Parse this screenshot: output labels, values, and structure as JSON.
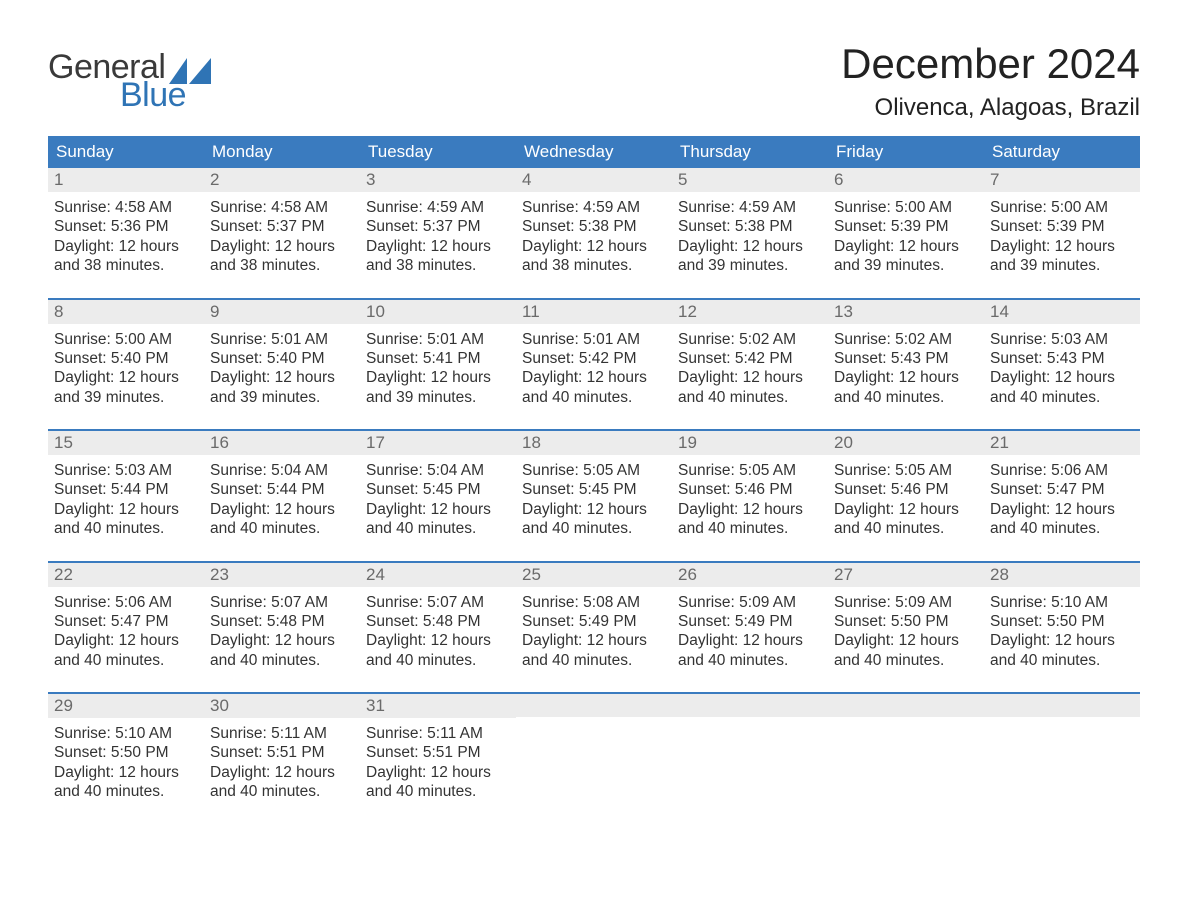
{
  "colors": {
    "brand_blue": "#2f74b5",
    "header_blue": "#3a7bbf",
    "row_separator": "#3a7bbf",
    "daynum_bg": "#ececec",
    "text_dark": "#333333",
    "text_daynum": "#6a6a6a",
    "page_bg": "#ffffff",
    "white": "#ffffff"
  },
  "typography": {
    "title_fontsize_pt": 32,
    "location_fontsize_pt": 18,
    "header_fontsize_pt": 13,
    "body_fontsize_pt": 12,
    "font_family": "Arial"
  },
  "logo": {
    "line1": "General",
    "line2": "Blue",
    "icon_name": "triangle-flag-icon",
    "icon_color": "#2f74b5"
  },
  "header": {
    "month_title": "December 2024",
    "location": "Olivenca, Alagoas, Brazil"
  },
  "calendar": {
    "type": "table",
    "columns": [
      "Sunday",
      "Monday",
      "Tuesday",
      "Wednesday",
      "Thursday",
      "Friday",
      "Saturday"
    ],
    "weeks": [
      [
        {
          "num": "1",
          "sunrise": "Sunrise: 4:58 AM",
          "sunset": "Sunset: 5:36 PM",
          "daylight1": "Daylight: 12 hours",
          "daylight2": "and 38 minutes."
        },
        {
          "num": "2",
          "sunrise": "Sunrise: 4:58 AM",
          "sunset": "Sunset: 5:37 PM",
          "daylight1": "Daylight: 12 hours",
          "daylight2": "and 38 minutes."
        },
        {
          "num": "3",
          "sunrise": "Sunrise: 4:59 AM",
          "sunset": "Sunset: 5:37 PM",
          "daylight1": "Daylight: 12 hours",
          "daylight2": "and 38 minutes."
        },
        {
          "num": "4",
          "sunrise": "Sunrise: 4:59 AM",
          "sunset": "Sunset: 5:38 PM",
          "daylight1": "Daylight: 12 hours",
          "daylight2": "and 38 minutes."
        },
        {
          "num": "5",
          "sunrise": "Sunrise: 4:59 AM",
          "sunset": "Sunset: 5:38 PM",
          "daylight1": "Daylight: 12 hours",
          "daylight2": "and 39 minutes."
        },
        {
          "num": "6",
          "sunrise": "Sunrise: 5:00 AM",
          "sunset": "Sunset: 5:39 PM",
          "daylight1": "Daylight: 12 hours",
          "daylight2": "and 39 minutes."
        },
        {
          "num": "7",
          "sunrise": "Sunrise: 5:00 AM",
          "sunset": "Sunset: 5:39 PM",
          "daylight1": "Daylight: 12 hours",
          "daylight2": "and 39 minutes."
        }
      ],
      [
        {
          "num": "8",
          "sunrise": "Sunrise: 5:00 AM",
          "sunset": "Sunset: 5:40 PM",
          "daylight1": "Daylight: 12 hours",
          "daylight2": "and 39 minutes."
        },
        {
          "num": "9",
          "sunrise": "Sunrise: 5:01 AM",
          "sunset": "Sunset: 5:40 PM",
          "daylight1": "Daylight: 12 hours",
          "daylight2": "and 39 minutes."
        },
        {
          "num": "10",
          "sunrise": "Sunrise: 5:01 AM",
          "sunset": "Sunset: 5:41 PM",
          "daylight1": "Daylight: 12 hours",
          "daylight2": "and 39 minutes."
        },
        {
          "num": "11",
          "sunrise": "Sunrise: 5:01 AM",
          "sunset": "Sunset: 5:42 PM",
          "daylight1": "Daylight: 12 hours",
          "daylight2": "and 40 minutes."
        },
        {
          "num": "12",
          "sunrise": "Sunrise: 5:02 AM",
          "sunset": "Sunset: 5:42 PM",
          "daylight1": "Daylight: 12 hours",
          "daylight2": "and 40 minutes."
        },
        {
          "num": "13",
          "sunrise": "Sunrise: 5:02 AM",
          "sunset": "Sunset: 5:43 PM",
          "daylight1": "Daylight: 12 hours",
          "daylight2": "and 40 minutes."
        },
        {
          "num": "14",
          "sunrise": "Sunrise: 5:03 AM",
          "sunset": "Sunset: 5:43 PM",
          "daylight1": "Daylight: 12 hours",
          "daylight2": "and 40 minutes."
        }
      ],
      [
        {
          "num": "15",
          "sunrise": "Sunrise: 5:03 AM",
          "sunset": "Sunset: 5:44 PM",
          "daylight1": "Daylight: 12 hours",
          "daylight2": "and 40 minutes."
        },
        {
          "num": "16",
          "sunrise": "Sunrise: 5:04 AM",
          "sunset": "Sunset: 5:44 PM",
          "daylight1": "Daylight: 12 hours",
          "daylight2": "and 40 minutes."
        },
        {
          "num": "17",
          "sunrise": "Sunrise: 5:04 AM",
          "sunset": "Sunset: 5:45 PM",
          "daylight1": "Daylight: 12 hours",
          "daylight2": "and 40 minutes."
        },
        {
          "num": "18",
          "sunrise": "Sunrise: 5:05 AM",
          "sunset": "Sunset: 5:45 PM",
          "daylight1": "Daylight: 12 hours",
          "daylight2": "and 40 minutes."
        },
        {
          "num": "19",
          "sunrise": "Sunrise: 5:05 AM",
          "sunset": "Sunset: 5:46 PM",
          "daylight1": "Daylight: 12 hours",
          "daylight2": "and 40 minutes."
        },
        {
          "num": "20",
          "sunrise": "Sunrise: 5:05 AM",
          "sunset": "Sunset: 5:46 PM",
          "daylight1": "Daylight: 12 hours",
          "daylight2": "and 40 minutes."
        },
        {
          "num": "21",
          "sunrise": "Sunrise: 5:06 AM",
          "sunset": "Sunset: 5:47 PM",
          "daylight1": "Daylight: 12 hours",
          "daylight2": "and 40 minutes."
        }
      ],
      [
        {
          "num": "22",
          "sunrise": "Sunrise: 5:06 AM",
          "sunset": "Sunset: 5:47 PM",
          "daylight1": "Daylight: 12 hours",
          "daylight2": "and 40 minutes."
        },
        {
          "num": "23",
          "sunrise": "Sunrise: 5:07 AM",
          "sunset": "Sunset: 5:48 PM",
          "daylight1": "Daylight: 12 hours",
          "daylight2": "and 40 minutes."
        },
        {
          "num": "24",
          "sunrise": "Sunrise: 5:07 AM",
          "sunset": "Sunset: 5:48 PM",
          "daylight1": "Daylight: 12 hours",
          "daylight2": "and 40 minutes."
        },
        {
          "num": "25",
          "sunrise": "Sunrise: 5:08 AM",
          "sunset": "Sunset: 5:49 PM",
          "daylight1": "Daylight: 12 hours",
          "daylight2": "and 40 minutes."
        },
        {
          "num": "26",
          "sunrise": "Sunrise: 5:09 AM",
          "sunset": "Sunset: 5:49 PM",
          "daylight1": "Daylight: 12 hours",
          "daylight2": "and 40 minutes."
        },
        {
          "num": "27",
          "sunrise": "Sunrise: 5:09 AM",
          "sunset": "Sunset: 5:50 PM",
          "daylight1": "Daylight: 12 hours",
          "daylight2": "and 40 minutes."
        },
        {
          "num": "28",
          "sunrise": "Sunrise: 5:10 AM",
          "sunset": "Sunset: 5:50 PM",
          "daylight1": "Daylight: 12 hours",
          "daylight2": "and 40 minutes."
        }
      ],
      [
        {
          "num": "29",
          "sunrise": "Sunrise: 5:10 AM",
          "sunset": "Sunset: 5:50 PM",
          "daylight1": "Daylight: 12 hours",
          "daylight2": "and 40 minutes."
        },
        {
          "num": "30",
          "sunrise": "Sunrise: 5:11 AM",
          "sunset": "Sunset: 5:51 PM",
          "daylight1": "Daylight: 12 hours",
          "daylight2": "and 40 minutes."
        },
        {
          "num": "31",
          "sunrise": "Sunrise: 5:11 AM",
          "sunset": "Sunset: 5:51 PM",
          "daylight1": "Daylight: 12 hours",
          "daylight2": "and 40 minutes."
        },
        null,
        null,
        null,
        null
      ]
    ]
  }
}
